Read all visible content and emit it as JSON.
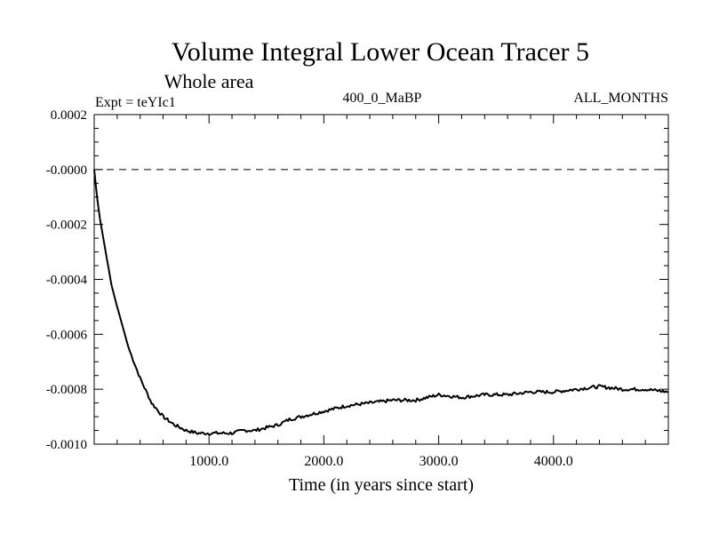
{
  "chart_data": {
    "type": "line",
    "title": "Volume Integral Lower Ocean Tracer 5",
    "subtitle": "Whole area",
    "header_left": "Expt = teYIc1",
    "header_center": "400_0_MaBP",
    "header_right": "ALL_MONTHS",
    "xlabel": "Time (in years since start)",
    "ylabel": "",
    "xlim": [
      0,
      5000
    ],
    "ylim": [
      -0.001,
      0.0002
    ],
    "x_ticks": [
      1000,
      2000,
      3000,
      4000
    ],
    "x_tick_labels": [
      "1000.0",
      "2000.0",
      "3000.0",
      "4000.0"
    ],
    "y_ticks": [
      0.0002,
      0.0,
      -0.0002,
      -0.0004,
      -0.0006,
      -0.0008,
      -0.001
    ],
    "y_tick_labels": [
      "0.0002",
      "-0.0000",
      "-0.0002",
      "-0.0004",
      "-0.0006",
      "-0.0008",
      "-0.0010"
    ],
    "reference_line": {
      "y": 0.0,
      "style": "dashed"
    },
    "grid": false,
    "series": [
      {
        "name": "Volume Integral Lower Ocean Tracer 5",
        "x": [
          0,
          25,
          50,
          100,
          150,
          200,
          300,
          400,
          500,
          600,
          700,
          800,
          900,
          1000,
          1100,
          1200,
          1300,
          1400,
          1500,
          1600,
          1700,
          1800,
          1900,
          2000,
          2200,
          2400,
          2600,
          2800,
          3000,
          3200,
          3400,
          3600,
          3800,
          4000,
          4200,
          4400,
          4600,
          4800,
          5000
        ],
        "values": [
          0.0,
          -0.0001,
          -0.00018,
          -0.0003,
          -0.00042,
          -0.0005,
          -0.00065,
          -0.00076,
          -0.00085,
          -0.0009,
          -0.00093,
          -0.00095,
          -0.00096,
          -0.00096,
          -0.00096,
          -0.00096,
          -0.00095,
          -0.00095,
          -0.00094,
          -0.00093,
          -0.00091,
          -0.0009,
          -0.00089,
          -0.00088,
          -0.00086,
          -0.00085,
          -0.00084,
          -0.00084,
          -0.00082,
          -0.00083,
          -0.00082,
          -0.00082,
          -0.00081,
          -0.00081,
          -0.0008,
          -0.00079,
          -0.0008,
          -0.0008,
          -0.00081
        ]
      }
    ]
  }
}
